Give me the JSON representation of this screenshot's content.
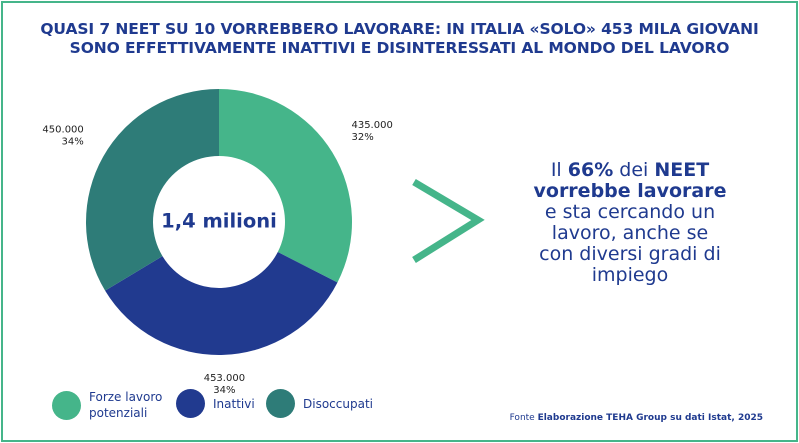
{
  "title": {
    "line1": "QUASI 7 NEET SU 10 VORREBBERO LAVORARE: IN ITALIA «SOLO» 453 MILA GIOVANI",
    "line2": "SONO EFFETTIVAMENTE INATTIVI E DISINTERESSATI AL MONDO DEL LAVORO"
  },
  "chart_data": {
    "type": "pie",
    "title": "QUASI 7 NEET SU 10 VORREBBERO LAVORARE: IN ITALIA «SOLO» 453 MILA GIOVANI SONO EFFETTIVAMENTE INATTIVI E DISINTERESSATI AL MONDO DEL LAVORO",
    "center_label": "1,4 milioni",
    "slices": [
      {
        "name": "Forze lavoro potenziali",
        "value": 435000,
        "percent": 32,
        "value_label": "435.000",
        "percent_label": "32%",
        "color": "#45b58a"
      },
      {
        "name": "Inattivi",
        "value": 453000,
        "percent": 34,
        "value_label": "453.000",
        "percent_label": "34%",
        "color": "#213a8f"
      },
      {
        "name": "Disoccupati",
        "value": 450000,
        "percent": 34,
        "value_label": "450.000",
        "percent_label": "34%",
        "color": "#2e7c78"
      }
    ],
    "legend_position": "bottom-left"
  },
  "callout": {
    "prefix": "Il ",
    "highlight_pct": "66%",
    "mid": " dei ",
    "highlight_neet": "NEET",
    "highlight_line2": "vorrebbe lavorare",
    "rest": "e sta cercando un lavoro, anche se con diversi gradi di impiego"
  },
  "legend": [
    {
      "label": "Forze lavoro potenziali",
      "color": "#45b58a"
    },
    {
      "label": "Inattivi",
      "color": "#213a8f"
    },
    {
      "label": "Disoccupati",
      "color": "#2e7c78"
    }
  ],
  "source": {
    "prefix": "Fonte ",
    "text": "Elaborazione TEHA Group su dati Istat, 2025"
  },
  "colors": {
    "accent": "#45b58a",
    "navy": "#1f3a8f",
    "teal": "#2e7c78"
  }
}
